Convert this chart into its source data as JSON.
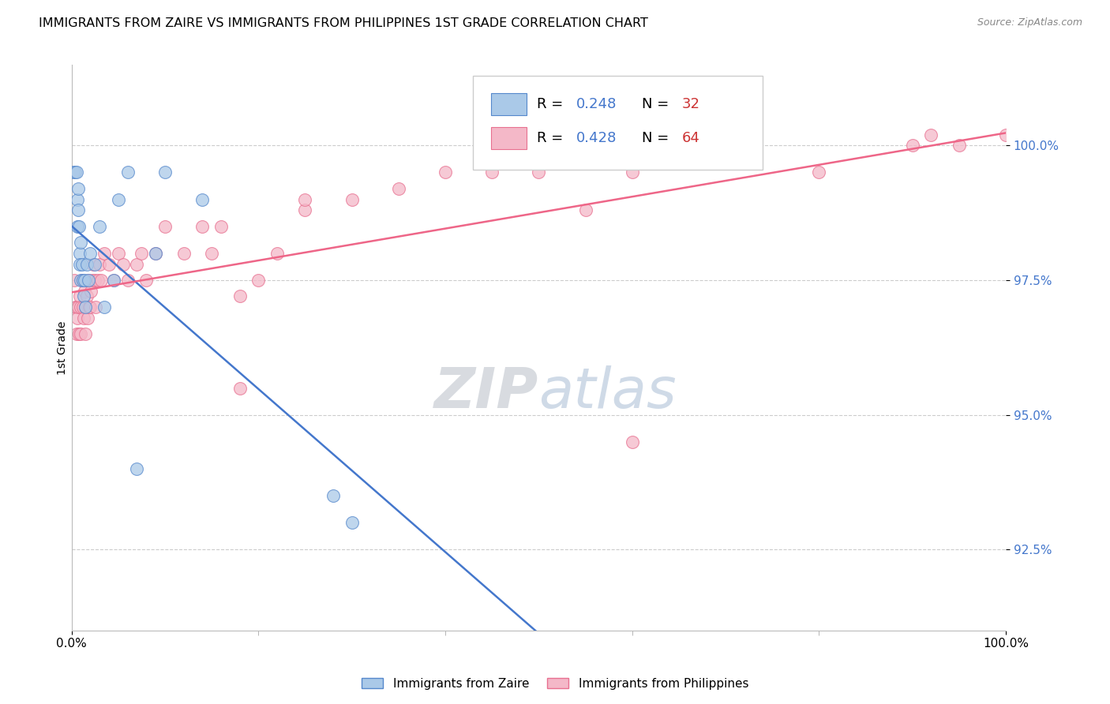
{
  "title": "IMMIGRANTS FROM ZAIRE VS IMMIGRANTS FROM PHILIPPINES 1ST GRADE CORRELATION CHART",
  "source": "Source: ZipAtlas.com",
  "ylabel": "1st Grade",
  "legend_bottom_blue": "Immigrants from Zaire",
  "legend_bottom_pink": "Immigrants from Philippines",
  "xlim": [
    0.0,
    100.0
  ],
  "ylim": [
    91.0,
    101.5
  ],
  "yticks": [
    92.5,
    95.0,
    97.5,
    100.0
  ],
  "ytick_labels": [
    "92.5%",
    "95.0%",
    "97.5%",
    "100.0%"
  ],
  "xtick_positions": [
    0.0,
    100.0
  ],
  "xtick_labels": [
    "0.0%",
    "100.0%"
  ],
  "xtick_minor": [
    20.0,
    40.0,
    60.0,
    80.0
  ],
  "blue_color": "#aac9e8",
  "pink_color": "#f4b8c8",
  "blue_edge_color": "#5588cc",
  "pink_edge_color": "#e87090",
  "blue_line_color": "#4477cc",
  "pink_line_color": "#ee6688",
  "blue_R": "0.248",
  "blue_N": "32",
  "pink_R": "0.428",
  "pink_N": "64",
  "R_value_color": "#4477cc",
  "N_value_color": "#cc3333",
  "zaire_x": [
    0.2,
    0.4,
    0.5,
    0.6,
    0.6,
    0.7,
    0.7,
    0.8,
    0.9,
    0.9,
    1.0,
    1.0,
    1.1,
    1.2,
    1.3,
    1.4,
    1.5,
    1.6,
    1.8,
    2.0,
    2.5,
    3.0,
    5.0,
    6.0,
    7.0,
    9.0,
    10.0,
    14.0,
    3.5,
    4.5,
    28.0,
    30.0
  ],
  "zaire_y": [
    99.5,
    99.5,
    99.5,
    99.0,
    98.5,
    99.2,
    98.8,
    98.5,
    98.0,
    97.8,
    98.2,
    97.5,
    97.8,
    97.5,
    97.2,
    97.5,
    97.0,
    97.8,
    97.5,
    98.0,
    97.8,
    98.5,
    99.0,
    99.5,
    94.0,
    98.0,
    99.5,
    99.0,
    97.0,
    97.5,
    93.5,
    93.0
  ],
  "phil_x": [
    0.3,
    0.4,
    0.5,
    0.5,
    0.6,
    0.7,
    0.8,
    0.9,
    1.0,
    1.0,
    1.1,
    1.2,
    1.3,
    1.4,
    1.5,
    1.5,
    1.6,
    1.7,
    1.8,
    1.9,
    2.0,
    2.1,
    2.2,
    2.3,
    2.5,
    2.6,
    2.8,
    3.0,
    3.2,
    3.5,
    4.0,
    4.5,
    5.0,
    5.5,
    6.0,
    7.0,
    7.5,
    8.0,
    9.0,
    10.0,
    12.0,
    14.0,
    15.0,
    16.0,
    18.0,
    20.0,
    22.0,
    25.0,
    30.0,
    35.0,
    40.0,
    45.0,
    50.0,
    55.0,
    60.0,
    70.0,
    80.0,
    90.0,
    95.0,
    100.0,
    18.0,
    25.0,
    60.0,
    92.0
  ],
  "phil_y": [
    97.5,
    97.0,
    96.5,
    97.0,
    96.8,
    97.0,
    96.5,
    97.2,
    97.0,
    96.5,
    97.5,
    97.0,
    96.8,
    97.3,
    96.5,
    97.0,
    97.2,
    96.8,
    97.5,
    97.0,
    97.0,
    97.3,
    97.5,
    97.8,
    97.5,
    97.0,
    97.5,
    97.8,
    97.5,
    98.0,
    97.8,
    97.5,
    98.0,
    97.8,
    97.5,
    97.8,
    98.0,
    97.5,
    98.0,
    98.5,
    98.0,
    98.5,
    98.0,
    98.5,
    95.5,
    97.5,
    98.0,
    98.8,
    99.0,
    99.2,
    99.5,
    99.5,
    99.5,
    98.8,
    99.5,
    99.8,
    99.5,
    100.0,
    100.0,
    100.2,
    97.2,
    99.0,
    94.5,
    100.2
  ]
}
